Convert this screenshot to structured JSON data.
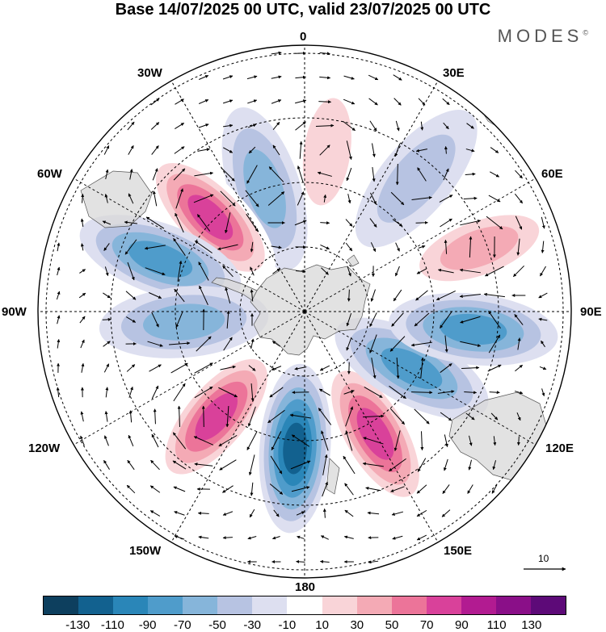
{
  "title": "Base 14/07/2025 00 UTC, valid 23/07/2025 00 UTC",
  "brand": "MODES",
  "brand_mark": "©",
  "longitude_labels": {
    "n": "0",
    "ne": "30E",
    "nee": "60E",
    "e": "90E",
    "se": "120E",
    "sse": "150E",
    "s": "180",
    "ssw": "150W",
    "sw": "120W",
    "w": "90W",
    "nww": "60W",
    "nw": "30W"
  },
  "reference_vector": "10",
  "colorbar": {
    "labels": [
      "-130",
      "-110",
      "-90",
      "-70",
      "-50",
      "-30",
      "-10",
      "10",
      "30",
      "50",
      "70",
      "90",
      "110",
      "130"
    ],
    "colors": [
      "#0d3f5e",
      "#12618f",
      "#2a86b8",
      "#4f9ccb",
      "#86b5da",
      "#b7c3e2",
      "#dddff0",
      "#ffffff",
      "#f9d4d8",
      "#f4aab5",
      "#ec7499",
      "#d9419a",
      "#b21b91",
      "#8a0f88",
      "#5d0a78"
    ]
  },
  "map_features": {
    "projection": "south-polar-stereographic",
    "anomaly_centers": [
      {
        "type": "positive",
        "sign": 1,
        "value": 90,
        "lon": 150
      },
      {
        "type": "negative",
        "sign": -1,
        "value": -110,
        "lon": -176
      },
      {
        "type": "positive",
        "sign": 1,
        "value": 90,
        "lon": -140
      },
      {
        "type": "negative",
        "sign": -1,
        "value": -70,
        "lon": 118
      },
      {
        "type": "negative",
        "sign": -1,
        "value": -70,
        "lon": 96
      },
      {
        "type": "positive",
        "sign": 1,
        "value": 50,
        "lon": 70
      },
      {
        "type": "negative",
        "sign": -1,
        "value": -30,
        "lon": 40
      },
      {
        "type": "positive",
        "sign": 1,
        "value": 30,
        "lon": 8
      },
      {
        "type": "negative",
        "sign": -1,
        "value": -50,
        "lon": -18
      },
      {
        "type": "positive",
        "sign": 1,
        "value": 90,
        "lon": -45
      },
      {
        "type": "negative",
        "sign": -1,
        "value": -70,
        "lon": -70
      },
      {
        "type": "negative",
        "sign": -1,
        "value": -50,
        "lon": -95
      }
    ]
  }
}
